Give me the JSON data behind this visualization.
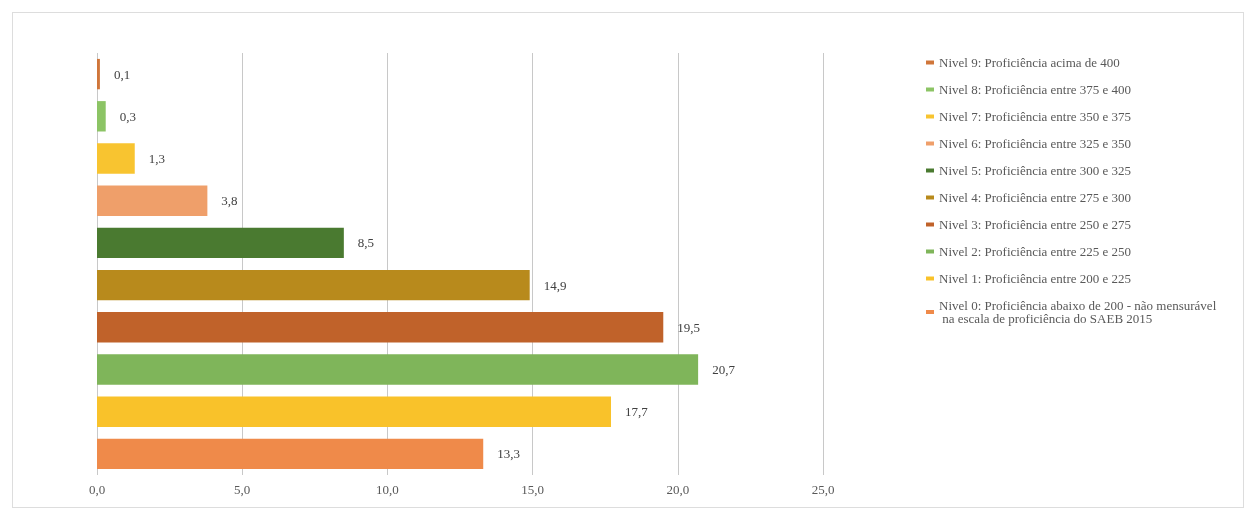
{
  "chart_data": {
    "type": "bar",
    "orientation": "horizontal",
    "categories": [
      null,
      null,
      null,
      null,
      null,
      null,
      null,
      null,
      null,
      null
    ],
    "series": [
      {
        "name": "Nivel 9: Proficiência acima de 400",
        "color": "#d0763a",
        "values": [
          0.1,
          null,
          null,
          null,
          null,
          null,
          null,
          null,
          null,
          null
        ],
        "value_labels": [
          "0,1",
          null,
          null,
          null,
          null,
          null,
          null,
          null,
          null,
          null
        ]
      },
      {
        "name": "Nivel 8: Proficiência entre 375 e 400",
        "color": "#8cc465",
        "values": [
          null,
          0.3,
          null,
          null,
          null,
          null,
          null,
          null,
          null,
          null
        ],
        "value_labels": [
          null,
          "0,3",
          null,
          null,
          null,
          null,
          null,
          null,
          null,
          null
        ]
      },
      {
        "name": "Nivel 7: Proficiência entre 350 e 375",
        "color": "#f8c430",
        "values": [
          null,
          null,
          1.3,
          null,
          null,
          null,
          null,
          null,
          null,
          null
        ],
        "value_labels": [
          null,
          null,
          "1,3",
          null,
          null,
          null,
          null,
          null,
          null,
          null
        ]
      },
      {
        "name": "Nivel 6: Proficiência entre 325 e 350",
        "color": "#ef9f6a",
        "values": [
          null,
          null,
          null,
          3.8,
          null,
          null,
          null,
          null,
          null,
          null
        ],
        "value_labels": [
          null,
          null,
          null,
          "3,8",
          null,
          null,
          null,
          null,
          null,
          null
        ]
      },
      {
        "name": "Nivel 5: Proficiência entre 300 e 325",
        "color": "#4a7a30",
        "values": [
          null,
          null,
          null,
          null,
          8.5,
          null,
          null,
          null,
          null,
          null
        ],
        "value_labels": [
          null,
          null,
          null,
          null,
          "8,5",
          null,
          null,
          null,
          null,
          null
        ]
      },
      {
        "name": "Nivel 4: Proficiência entre 275 e 300",
        "color": "#b88a1c",
        "values": [
          null,
          null,
          null,
          null,
          null,
          14.9,
          null,
          null,
          null,
          null
        ],
        "value_labels": [
          null,
          null,
          null,
          null,
          null,
          "14,9",
          null,
          null,
          null,
          null
        ]
      },
      {
        "name": "Nivel 3: Proficiência entre 250 e 275",
        "color": "#c0622a",
        "values": [
          null,
          null,
          null,
          null,
          null,
          null,
          19.5,
          null,
          null,
          null
        ],
        "value_labels": [
          null,
          null,
          null,
          null,
          null,
          null,
          "19,5",
          null,
          null,
          null
        ]
      },
      {
        "name": "Nivel 2: Proficiência entre 225 e 250",
        "color": "#7fb55a",
        "values": [
          null,
          null,
          null,
          null,
          null,
          null,
          null,
          20.7,
          null,
          null
        ],
        "value_labels": [
          null,
          null,
          null,
          null,
          null,
          null,
          null,
          "20,7",
          null,
          null
        ]
      },
      {
        "name": "Nivel 1: Proficiência entre 200 e 225",
        "color": "#f9c22a",
        "values": [
          null,
          null,
          null,
          null,
          null,
          null,
          null,
          null,
          17.7,
          null
        ],
        "value_labels": [
          null,
          null,
          null,
          null,
          null,
          null,
          null,
          null,
          "17,7",
          null
        ]
      },
      {
        "name": "Nivel 0: Proficiência abaixo de 200 - não mensurável na escala de proficiência do SAEB 2015",
        "color": "#ef8a4a",
        "values": [
          null,
          null,
          null,
          null,
          null,
          null,
          null,
          null,
          null,
          13.3
        ],
        "value_labels": [
          null,
          null,
          null,
          null,
          null,
          null,
          null,
          null,
          null,
          "13,3"
        ]
      }
    ],
    "xlim": [
      0,
      25
    ],
    "xticks": [
      {
        "value": 0,
        "label": "0,0"
      },
      {
        "value": 5,
        "label": "5,0"
      },
      {
        "value": 10,
        "label": "10,0"
      },
      {
        "value": 15,
        "label": "15,0"
      },
      {
        "value": 20,
        "label": "20,0"
      },
      {
        "value": 25,
        "label": "25,0"
      }
    ],
    "grid": "x",
    "legend": "right",
    "tick_labels": "x"
  }
}
